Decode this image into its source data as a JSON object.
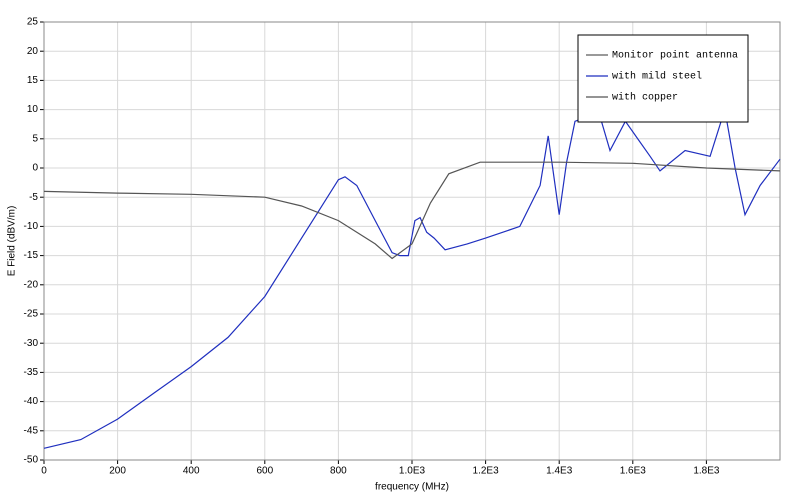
{
  "chart_data": {
    "type": "line",
    "xlabel": "frequency (MHz)",
    "ylabel": "E Field (dBV/m)",
    "legend_title": "Monitor point antenna",
    "xlim": [
      0,
      2000
    ],
    "xticks": [
      0,
      200,
      400,
      600,
      800,
      {
        "value": 1000,
        "label": "1.0E3"
      },
      {
        "value": 1200,
        "label": "1.2E3"
      },
      {
        "value": 1400,
        "label": "1.4E3"
      },
      {
        "value": 1600,
        "label": "1.6E3"
      },
      {
        "value": 1800,
        "label": "1.8E3"
      }
    ],
    "ylim": [
      -50,
      25
    ],
    "yticks": [
      -50,
      -45,
      -40,
      -35,
      -30,
      -25,
      -20,
      -15,
      -10,
      -5,
      0,
      5,
      10,
      15,
      20,
      25
    ],
    "grid": true,
    "legend": "upper right",
    "series": [
      {
        "name": "with mild steel",
        "color": "#1f2fbf",
        "x": [
          0,
          100,
          200,
          300,
          400,
          500,
          600,
          700,
          750,
          800,
          818,
          850,
          900,
          946,
          967,
          990,
          1008,
          1022,
          1040,
          1060,
          1090,
          1150,
          1200,
          1293,
          1348,
          1370,
          1400,
          1420,
          1443,
          1485,
          1510,
          1538,
          1580,
          1647,
          1674,
          1742,
          1810,
          1850,
          1878,
          1905,
          1946,
          2000
        ],
        "values": [
          -48,
          -46.5,
          -43,
          -38.5,
          -34,
          -29,
          -22,
          -12,
          -7,
          -2,
          -1.5,
          -3,
          -9,
          -14.5,
          -15,
          -15,
          -9,
          -8.5,
          -11,
          -12,
          -14,
          -13,
          -12,
          -10,
          -3,
          5.5,
          -8,
          1,
          8,
          9,
          9,
          3,
          8,
          2,
          -0.5,
          3,
          2,
          10,
          0,
          -8,
          -3,
          1.5
        ]
      },
      {
        "name": "with copper",
        "color": "#555555",
        "x": [
          0,
          200,
          400,
          600,
          700,
          800,
          900,
          946,
          1000,
          1050,
          1100,
          1185,
          1400,
          1600,
          1800,
          2000
        ],
        "values": [
          -4,
          -4.3,
          -4.5,
          -5,
          -6.5,
          -9,
          -13,
          -15.5,
          -13,
          -6,
          -1,
          1,
          1,
          0.8,
          0,
          -0.5
        ]
      }
    ]
  }
}
